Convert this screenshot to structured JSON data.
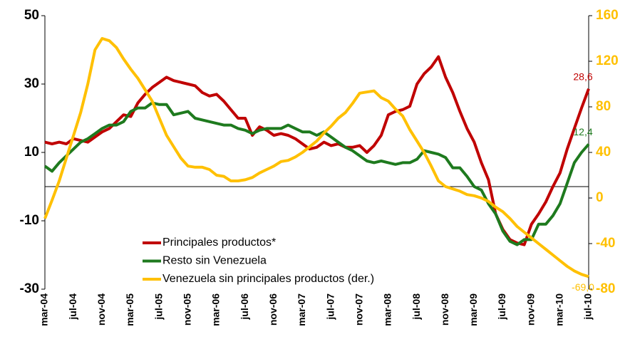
{
  "chart_data": {
    "type": "line",
    "categories": [
      "mar-04",
      null,
      null,
      null,
      "jul-04",
      null,
      null,
      null,
      "nov-04",
      null,
      null,
      null,
      "mar-05",
      null,
      null,
      null,
      "jul-05",
      null,
      null,
      null,
      "nov-05",
      null,
      null,
      null,
      "mar-06",
      null,
      null,
      null,
      "jul-06",
      null,
      null,
      null,
      "nov-06",
      null,
      null,
      null,
      "mar-07",
      null,
      null,
      null,
      "jul-07",
      null,
      null,
      null,
      "nov-07",
      null,
      null,
      null,
      "mar-08",
      null,
      null,
      null,
      "jul-08",
      null,
      null,
      null,
      "nov-08",
      null,
      null,
      null,
      "mar-09",
      null,
      null,
      null,
      "jul-09",
      null,
      null,
      null,
      "nov-09",
      null,
      null,
      null,
      "mar-10",
      null,
      null,
      null,
      "jul-10"
    ],
    "series": [
      {
        "name": "Principales productos*",
        "color": "#c00000",
        "axis": "y",
        "values": [
          13,
          12.5,
          13,
          12.5,
          14,
          13.5,
          13,
          14.5,
          16,
          17,
          19,
          21,
          20.5,
          24.5,
          27,
          29,
          30.5,
          32,
          31,
          30.5,
          30,
          29.5,
          27.5,
          26.5,
          27,
          25,
          22.5,
          20,
          20,
          15,
          17.5,
          16.5,
          15,
          15.5,
          15,
          14,
          12.5,
          11,
          11.5,
          13,
          12,
          12.5,
          11.5,
          11.5,
          12,
          10,
          12,
          15,
          21,
          22,
          22.5,
          23.5,
          30,
          33,
          35,
          38,
          32,
          27.5,
          22,
          17,
          13,
          7,
          2,
          -8,
          -12.5,
          -15.5,
          -16.5,
          -17,
          -11,
          -8,
          -4.5,
          0,
          4,
          11,
          17,
          23,
          28.6
        ],
        "value_labels": [
          null,
          null,
          null,
          null,
          null,
          null,
          null,
          null,
          null,
          null,
          null,
          null,
          null,
          null,
          null,
          null,
          null,
          null,
          null,
          null,
          null,
          null,
          null,
          null,
          null,
          null,
          null,
          null,
          null,
          null,
          null,
          null,
          null,
          null,
          null,
          null,
          null,
          null,
          null,
          null,
          null,
          null,
          null,
          null,
          null,
          null,
          null,
          null,
          null,
          null,
          null,
          null,
          null,
          null,
          null,
          null,
          null,
          null,
          null,
          null,
          null,
          null,
          null,
          null,
          null,
          null,
          null,
          null,
          null,
          null,
          null,
          null,
          null,
          null,
          null,
          null,
          "28,6"
        ]
      },
      {
        "name": "Resto sin Venezuela",
        "color": "#1e7a1e",
        "axis": "y",
        "values": [
          6,
          4.5,
          7,
          9,
          11,
          13,
          14,
          15.5,
          17,
          18,
          18,
          19,
          22,
          23,
          23,
          24.5,
          24,
          24,
          21,
          21.5,
          22,
          20,
          19.5,
          19,
          18.5,
          18,
          18,
          17,
          16.5,
          15.5,
          16.5,
          17,
          17,
          17,
          18,
          17,
          16,
          16,
          15,
          16,
          14.5,
          13,
          11.5,
          10.5,
          9,
          7.5,
          7,
          7.5,
          7,
          6.5,
          7,
          7,
          8,
          10.5,
          10,
          9.5,
          8.5,
          5.5,
          5.5,
          3,
          0,
          -1,
          -5,
          -8,
          -13,
          -16,
          -17,
          -15.5,
          -15.5,
          -11,
          -11,
          -8.5,
          -5,
          1,
          7,
          10,
          12.4
        ],
        "value_labels": [
          null,
          null,
          null,
          null,
          null,
          null,
          null,
          null,
          null,
          null,
          null,
          null,
          null,
          null,
          null,
          null,
          null,
          null,
          null,
          null,
          null,
          null,
          null,
          null,
          null,
          null,
          null,
          null,
          null,
          null,
          null,
          null,
          null,
          null,
          null,
          null,
          null,
          null,
          null,
          null,
          null,
          null,
          null,
          null,
          null,
          null,
          null,
          null,
          null,
          null,
          null,
          null,
          null,
          null,
          null,
          null,
          null,
          null,
          null,
          null,
          null,
          null,
          null,
          null,
          null,
          null,
          null,
          null,
          null,
          null,
          null,
          null,
          null,
          null,
          null,
          null,
          "12,4"
        ]
      },
      {
        "name": "Venezuela sin principales productos (der.)",
        "color": "#ffc000",
        "axis": "y2",
        "values": [
          -18,
          -2,
          15,
          35,
          55,
          75,
          100,
          130,
          140,
          138,
          132,
          122,
          113,
          105,
          95,
          85,
          70,
          55,
          45,
          35,
          28,
          27,
          27,
          25,
          20,
          19,
          15,
          15,
          16,
          18,
          22,
          25,
          28,
          32,
          33,
          36,
          40,
          45,
          50,
          57,
          63,
          70,
          75,
          83,
          92,
          93,
          94,
          88,
          85,
          78,
          72,
          60,
          50,
          40,
          28,
          15,
          10,
          8,
          6,
          3,
          2,
          0,
          -3,
          -8,
          -12,
          -18,
          -25,
          -30,
          -35,
          -40,
          -45,
          -50,
          -55,
          -60,
          -64,
          -67,
          -69
        ],
        "value_labels": [
          null,
          null,
          null,
          null,
          null,
          null,
          null,
          null,
          null,
          null,
          null,
          null,
          null,
          null,
          null,
          null,
          null,
          null,
          null,
          null,
          null,
          null,
          null,
          null,
          null,
          null,
          null,
          null,
          null,
          null,
          null,
          null,
          null,
          null,
          null,
          null,
          null,
          null,
          null,
          null,
          null,
          null,
          null,
          null,
          null,
          null,
          null,
          null,
          null,
          null,
          null,
          null,
          null,
          null,
          null,
          null,
          null,
          null,
          null,
          null,
          null,
          null,
          null,
          null,
          null,
          null,
          null,
          null,
          null,
          null,
          null,
          null,
          null,
          null,
          null,
          null,
          "-69,0"
        ]
      }
    ],
    "ylim": [
      -30,
      50
    ],
    "yticks": [
      50,
      30,
      10,
      -10,
      -30
    ],
    "y2lim": [
      -80,
      160
    ],
    "y2ticks": [
      160,
      120,
      80,
      40,
      0,
      -40,
      -80
    ],
    "y2tick_color": "#ffc000",
    "legend": "lower left"
  }
}
